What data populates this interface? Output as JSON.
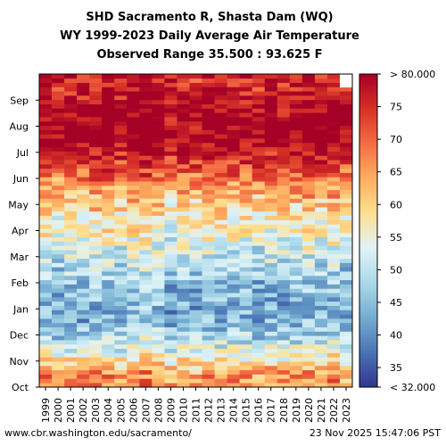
{
  "titles": {
    "line1": "SHD Sacramento R, Shasta Dam (WQ)",
    "line2": "WY 1999-2023 Daily Average Air Temperature",
    "line3": "Observed Range 35.500 : 93.625 F"
  },
  "footer": {
    "source": "www.cbr.washington.edu/sacramento/",
    "timestamp": "23 Nov 2025 15:47:06 PST"
  },
  "chart_data": {
    "type": "heatmap",
    "x": [
      "1999",
      "2000",
      "2001",
      "2002",
      "2003",
      "2004",
      "2005",
      "2006",
      "2007",
      "2008",
      "2009",
      "2010",
      "2011",
      "2012",
      "2013",
      "2014",
      "2015",
      "2016",
      "2017",
      "2018",
      "2019",
      "2020",
      "2021",
      "2022",
      "2023"
    ],
    "y": [
      "Oct",
      "Nov",
      "Dec",
      "Jan",
      "Feb",
      "Mar",
      "Apr",
      "May",
      "Jun",
      "Jul",
      "Aug",
      "Sep"
    ],
    "monthly_mean_estimate": [
      66,
      52,
      44,
      44,
      48,
      53,
      58,
      64,
      74,
      82,
      81,
      76
    ],
    "colorbar": {
      "ticks": [
        "< 32.000",
        "35",
        "40",
        "45",
        "50",
        "55",
        "60",
        "65",
        "70",
        "75",
        "> 80.000"
      ],
      "min": 32,
      "max": 80,
      "colors": [
        "#31368f",
        "#4a74b4",
        "#75add1",
        "#abd9e9",
        "#e0f3f8",
        "#fee090",
        "#fdae61",
        "#f46d43",
        "#d73027",
        "#a50026"
      ]
    },
    "missing_color": "#ffffff",
    "observed_range": [
      35.5,
      93.625
    ]
  }
}
